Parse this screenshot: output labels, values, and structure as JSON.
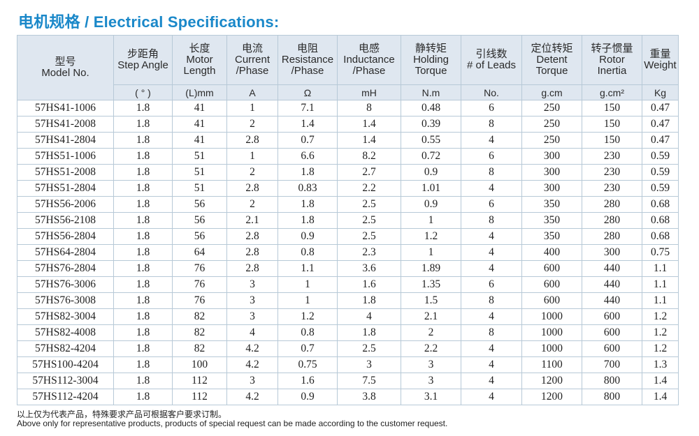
{
  "title": "电机规格 / Electrical Specifications:",
  "header": {
    "model_cn": "型号",
    "model_en": "Model No.",
    "columns": [
      {
        "cn": "步距角",
        "en": [
          "Step Angle"
        ],
        "unit": "( ° )"
      },
      {
        "cn": "长度",
        "en": [
          "Motor",
          "Length"
        ],
        "unit": "(L)mm"
      },
      {
        "cn": "电流",
        "en": [
          "Current",
          "/Phase"
        ],
        "unit": "A"
      },
      {
        "cn": "电阻",
        "en": [
          "Resistance",
          "/Phase"
        ],
        "unit": "Ω"
      },
      {
        "cn": "电感",
        "en": [
          "Inductance",
          "/Phase"
        ],
        "unit": "mH"
      },
      {
        "cn": "静转矩",
        "en": [
          "Holding",
          "Torque"
        ],
        "unit": "N.m"
      },
      {
        "cn": "引线数",
        "en": [
          "# of Leads"
        ],
        "unit": "No."
      },
      {
        "cn": "定位转矩",
        "en": [
          "Detent",
          "Torque"
        ],
        "unit": "g.cm"
      },
      {
        "cn": "转子惯量",
        "en": [
          "Rotor",
          "Inertia"
        ],
        "unit": "g.cm²"
      },
      {
        "cn": "重量",
        "en": [
          "Weight"
        ],
        "unit": "Kg"
      }
    ]
  },
  "rows": [
    [
      "57HS41-1006",
      "1.8",
      "41",
      "1",
      "7.1",
      "8",
      "0.48",
      "6",
      "250",
      "150",
      "0.47"
    ],
    [
      "57HS41-2008",
      "1.8",
      "41",
      "2",
      "1.4",
      "1.4",
      "0.39",
      "8",
      "250",
      "150",
      "0.47"
    ],
    [
      "57HS41-2804",
      "1.8",
      "41",
      "2.8",
      "0.7",
      "1.4",
      "0.55",
      "4",
      "250",
      "150",
      "0.47"
    ],
    [
      "57HS51-1006",
      "1.8",
      "51",
      "1",
      "6.6",
      "8.2",
      "0.72",
      "6",
      "300",
      "230",
      "0.59"
    ],
    [
      "57HS51-2008",
      "1.8",
      "51",
      "2",
      "1.8",
      "2.7",
      "0.9",
      "8",
      "300",
      "230",
      "0.59"
    ],
    [
      "57HS51-2804",
      "1.8",
      "51",
      "2.8",
      "0.83",
      "2.2",
      "1.01",
      "4",
      "300",
      "230",
      "0.59"
    ],
    [
      "57HS56-2006",
      "1.8",
      "56",
      "2",
      "1.8",
      "2.5",
      "0.9",
      "6",
      "350",
      "280",
      "0.68"
    ],
    [
      "57HS56-2108",
      "1.8",
      "56",
      "2.1",
      "1.8",
      "2.5",
      "1",
      "8",
      "350",
      "280",
      "0.68"
    ],
    [
      "57HS56-2804",
      "1.8",
      "56",
      "2.8",
      "0.9",
      "2.5",
      "1.2",
      "4",
      "350",
      "280",
      "0.68"
    ],
    [
      "57HS64-2804",
      "1.8",
      "64",
      "2.8",
      "0.8",
      "2.3",
      "1",
      "4",
      "400",
      "300",
      "0.75"
    ],
    [
      "57HS76-2804",
      "1.8",
      "76",
      "2.8",
      "1.1",
      "3.6",
      "1.89",
      "4",
      "600",
      "440",
      "1.1"
    ],
    [
      "57HS76-3006",
      "1.8",
      "76",
      "3",
      "1",
      "1.6",
      "1.35",
      "6",
      "600",
      "440",
      "1.1"
    ],
    [
      "57HS76-3008",
      "1.8",
      "76",
      "3",
      "1",
      "1.8",
      "1.5",
      "8",
      "600",
      "440",
      "1.1"
    ],
    [
      "57HS82-3004",
      "1.8",
      "82",
      "3",
      "1.2",
      "4",
      "2.1",
      "4",
      "1000",
      "600",
      "1.2"
    ],
    [
      "57HS82-4008",
      "1.8",
      "82",
      "4",
      "0.8",
      "1.8",
      "2",
      "8",
      "1000",
      "600",
      "1.2"
    ],
    [
      "57HS82-4204",
      "1.8",
      "82",
      "4.2",
      "0.7",
      "2.5",
      "2.2",
      "4",
      "1000",
      "600",
      "1.2"
    ],
    [
      "57HS100-4204",
      "1.8",
      "100",
      "4.2",
      "0.75",
      "3",
      "3",
      "4",
      "1100",
      "700",
      "1.3"
    ],
    [
      "57HS112-3004",
      "1.8",
      "112",
      "3",
      "1.6",
      "7.5",
      "3",
      "4",
      "1200",
      "800",
      "1.4"
    ],
    [
      "57HS112-4204",
      "1.8",
      "112",
      "4.2",
      "0.9",
      "3.8",
      "3.1",
      "4",
      "1200",
      "800",
      "1.4"
    ]
  ],
  "notes": {
    "cn": "以上仅为代表产品，特殊要求产品可根据客户要求订制。",
    "en": "Above only for representative products, products of special request can be made according to the customer request."
  },
  "colors": {
    "title": "#1a88c9",
    "header_bg": "#dfe7f0",
    "border": "#b7c9d7"
  }
}
